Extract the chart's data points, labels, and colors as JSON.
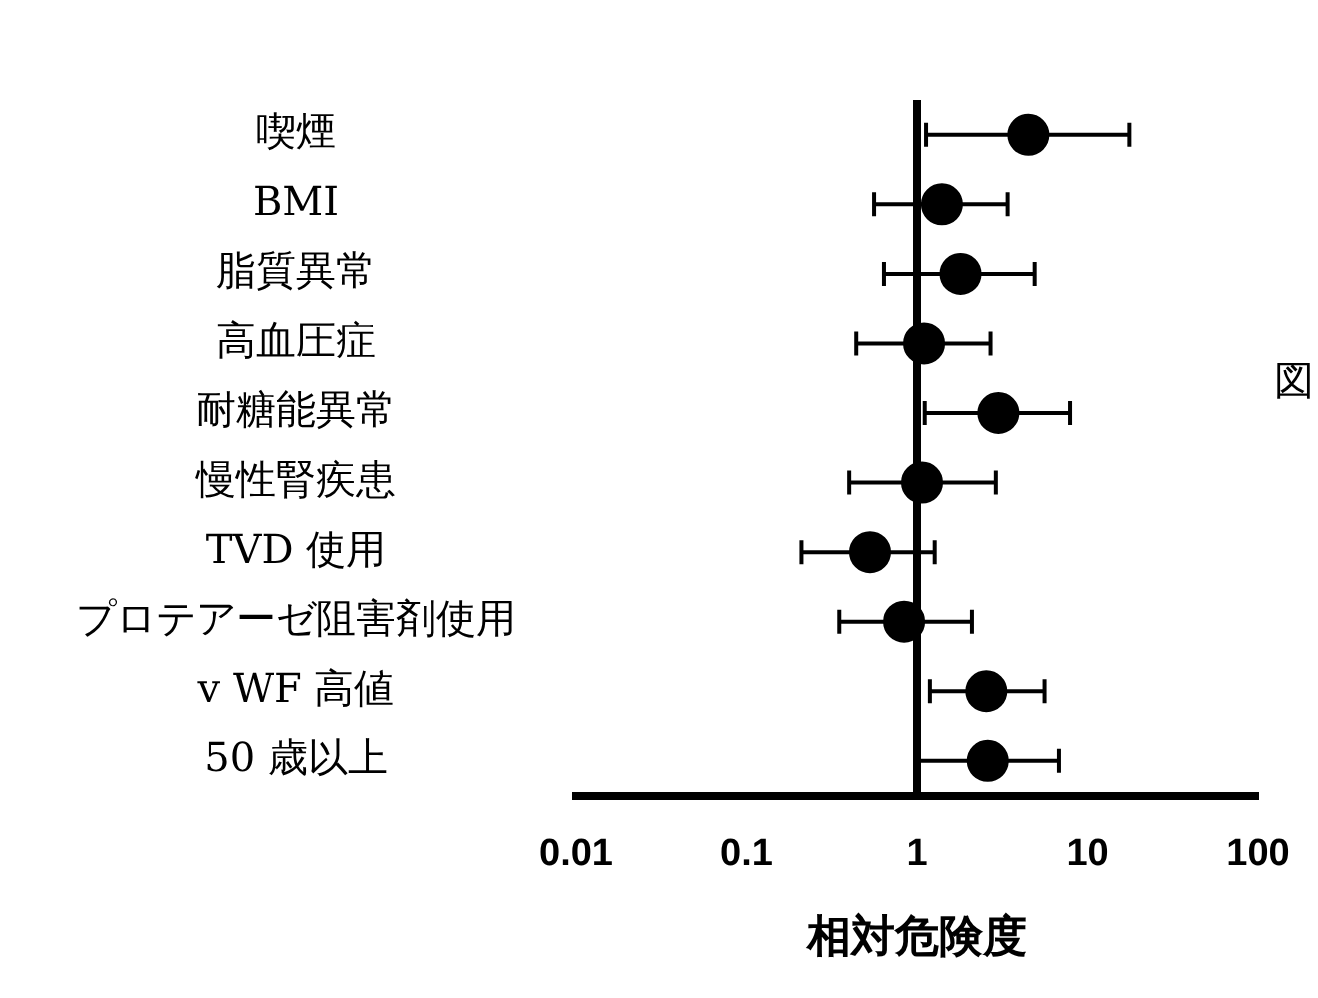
{
  "chart_data": {
    "type": "scatter",
    "orientation": "horizontal",
    "xlabel": "相対危険度",
    "categories": [
      "喫煙",
      "BMI",
      "脂質異常",
      "高血圧症",
      "耐糖能異常",
      "慢性腎疾患",
      "TVD 使用",
      "プロテアーゼ阻害剤使用",
      "v WF 高値",
      "50 歳以上"
    ],
    "values": [
      4.5,
      1.4,
      1.8,
      1.1,
      3.0,
      1.07,
      0.53,
      0.84,
      2.55,
      2.6
    ],
    "errors": [
      [
        1.13,
        17.6
      ],
      [
        0.56,
        3.4
      ],
      [
        0.64,
        4.9
      ],
      [
        0.44,
        2.7
      ],
      [
        1.11,
        7.9
      ],
      [
        0.4,
        2.9
      ],
      [
        0.21,
        1.27
      ],
      [
        0.35,
        2.1
      ],
      [
        1.19,
        5.6
      ],
      [
        1.0,
        6.8
      ]
    ],
    "color": "#000000",
    "marker": "circle",
    "log": "x",
    "xlim": [
      0.01,
      100
    ],
    "xticks": [
      0.01,
      0.1,
      1,
      10,
      100
    ],
    "ref_lines": [
      {
        "axis": "x",
        "value": 1,
        "color": "#000000"
      }
    ],
    "grid": false,
    "legend": false,
    "annotations": [
      "図"
    ]
  }
}
